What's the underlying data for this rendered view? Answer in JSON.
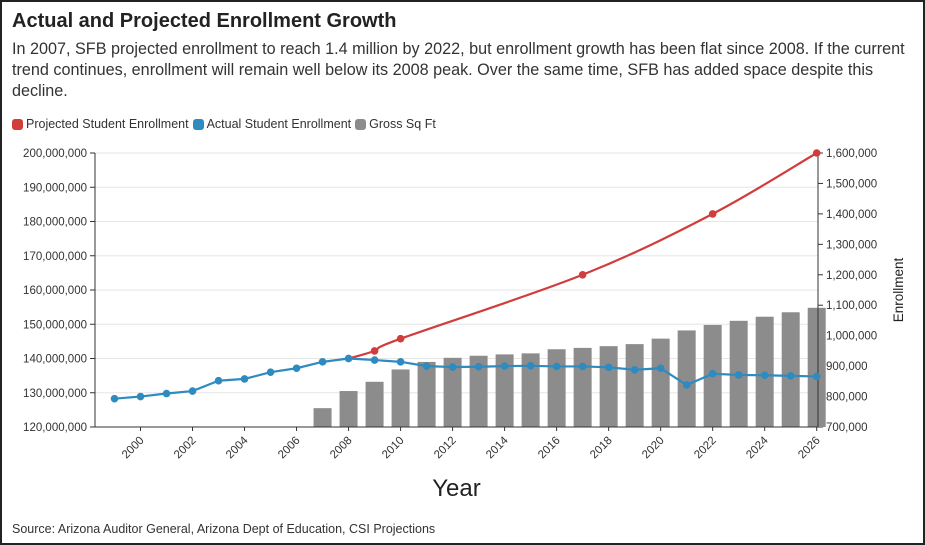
{
  "header": {
    "title": "Actual and Projected Enrollment Growth",
    "subtitle": "In 2007, SFB projected enrollment to reach 1.4 million by 2022, but enrollment growth has been flat since 2008. If the current trend continues, enrollment will remain well below its 2008 peak. Over the same time, SFB has added space despite this decline."
  },
  "legend": [
    {
      "label": "Projected Student Enrollment",
      "color": "#d13d3d"
    },
    {
      "label": "Actual Student Enrollment",
      "color": "#2e8bc0"
    },
    {
      "label": "Gross Sq Ft",
      "color": "#8c8c8c"
    }
  ],
  "source": "Source: Arizona Auditor General, Arizona Dept of Education, CSI Projections",
  "chart_data": {
    "type": "bar",
    "xlabel": "Year",
    "ylabel_left": "",
    "ylabel_right": "Enrollment",
    "ylim_left": [
      120000000,
      200000000
    ],
    "ylim_right": [
      700000,
      1600000
    ],
    "left_ticks": [
      "120,000,000",
      "130,000,000",
      "140,000,000",
      "150,000,000",
      "160,000,000",
      "170,000,000",
      "180,000,000",
      "190,000,000",
      "200,000,000"
    ],
    "right_ticks": [
      "700,000",
      "800,000",
      "900,000",
      "1,000,000",
      "1,100,000",
      "1,200,000",
      "1,300,000",
      "1,400,000",
      "1,500,000",
      "1,600,000"
    ],
    "x_ticks": [
      "2000",
      "2002",
      "2004",
      "2006",
      "2008",
      "2010",
      "2012",
      "2014",
      "2016",
      "2018",
      "2020",
      "2022",
      "2024",
      "2026"
    ],
    "x_range": [
      1999,
      2026
    ],
    "grid": true,
    "legend_position": "top-left",
    "series": [
      {
        "name": "Gross Sq Ft",
        "axis": "left",
        "type": "bar",
        "x": [
          2007,
          2008,
          2009,
          2010,
          2011,
          2012,
          2013,
          2014,
          2015,
          2016,
          2017,
          2018,
          2019,
          2020,
          2021,
          2022,
          2023,
          2024,
          2025,
          2026
        ],
        "values": [
          125500000,
          130500000,
          133200000,
          136800000,
          139000000,
          140200000,
          140800000,
          141200000,
          141500000,
          142700000,
          143100000,
          143600000,
          144200000,
          145800000,
          148200000,
          149800000,
          151000000,
          152200000,
          153500000,
          154800000
        ]
      },
      {
        "name": "Actual Student Enrollment",
        "axis": "right",
        "type": "line",
        "x": [
          1999,
          2000,
          2001,
          2002,
          2003,
          2004,
          2005,
          2006,
          2007,
          2008,
          2009,
          2010,
          2011,
          2012,
          2013,
          2014,
          2015,
          2016,
          2017,
          2018,
          2019,
          2020,
          2021,
          2022,
          2023,
          2024,
          2025,
          2026
        ],
        "values": [
          793000,
          800000,
          810000,
          818000,
          852000,
          858000,
          880000,
          893000,
          914000,
          925000,
          920000,
          914000,
          900000,
          897000,
          898000,
          900000,
          901000,
          899000,
          899000,
          896000,
          888000,
          893000,
          838000,
          875000,
          871000,
          870000,
          868000,
          866000
        ]
      },
      {
        "name": "Projected Student Enrollment",
        "axis": "right",
        "type": "line",
        "x": [
          2008,
          2009,
          2010,
          2017,
          2022,
          2026
        ],
        "values": [
          925000,
          950000,
          990000,
          1200000,
          1400000,
          1600000
        ]
      }
    ]
  }
}
